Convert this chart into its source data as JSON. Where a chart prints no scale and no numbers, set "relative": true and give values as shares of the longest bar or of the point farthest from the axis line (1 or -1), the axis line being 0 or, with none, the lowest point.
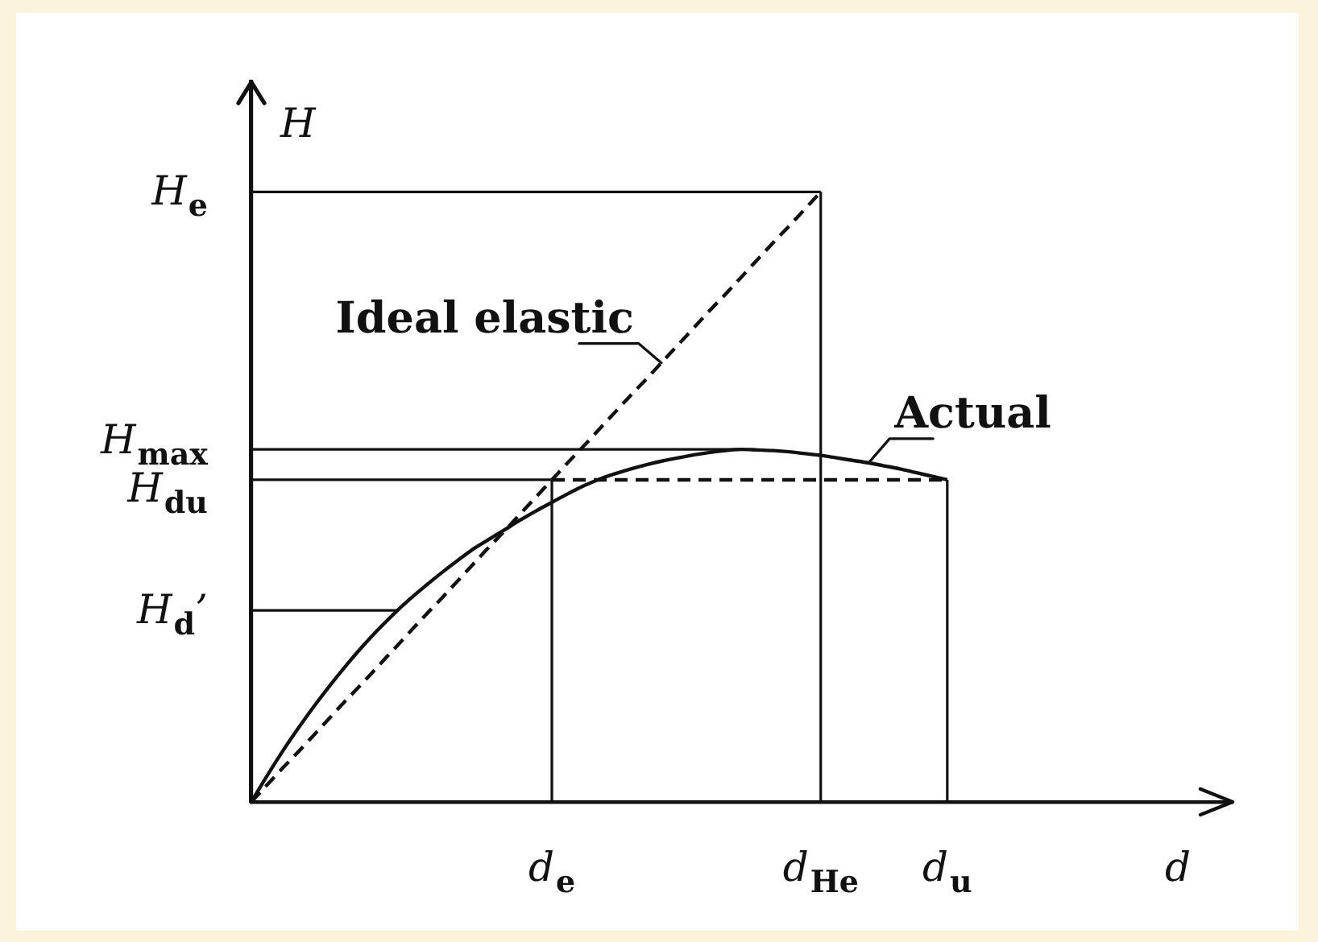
{
  "chart_data": {
    "type": "line",
    "relative": true,
    "xlabel": "d",
    "ylabel": "H",
    "categories": [
      null,
      null,
      null,
      null,
      null,
      null,
      null,
      null,
      null,
      null,
      null,
      null,
      null,
      null,
      null,
      null,
      null,
      null,
      null,
      "d$_{e}$",
      null,
      null,
      null,
      null,
      null,
      null,
      null,
      null,
      null,
      null,
      null,
      null,
      null,
      null,
      null,
      null,
      "d$_{He}$",
      null,
      null,
      null,
      null,
      null,
      null,
      null,
      "d$_{u}$"
    ],
    "series": [
      {
        "name": "Ideal elastic",
        "color": "#111111",
        "line_style": "dashed",
        "values": [
          0,
          0.028,
          0.056,
          0.083,
          0.111,
          0.139,
          0.167,
          0.194,
          0.222,
          0.25,
          0.278,
          0.306,
          0.333,
          0.361,
          0.389,
          0.417,
          0.444,
          0.472,
          0.5,
          0.528,
          0.556,
          0.583,
          0.611,
          0.639,
          0.667,
          0.694,
          0.722,
          0.75,
          0.778,
          0.806,
          0.833,
          0.861,
          0.889,
          0.917,
          0.944,
          0.972,
          1,
          null,
          null,
          null,
          null,
          null,
          null,
          null,
          null
        ]
      },
      {
        "name": "Actual",
        "color": "#111111",
        "values": [
          0,
          0.043,
          0.084,
          0.122,
          0.158,
          0.192,
          0.224,
          0.254,
          0.282,
          0.308,
          0.332,
          0.354,
          0.375,
          0.395,
          0.414,
          0.43,
          0.446,
          0.462,
          0.477,
          0.491,
          0.505,
          0.518,
          0.529,
          0.538,
          0.546,
          0.553,
          0.559,
          0.564,
          0.569,
          0.573,
          0.576,
          0.578,
          0.577,
          0.576,
          0.574,
          0.571,
          0.568,
          0.564,
          0.56,
          0.556,
          0.551,
          0.546,
          0.54,
          0.534,
          0.528
        ]
      },
      {
        "color": "#111111",
        "line_style": "dashed",
        "values": [
          null,
          null,
          null,
          null,
          null,
          null,
          null,
          null,
          null,
          null,
          null,
          null,
          null,
          null,
          null,
          null,
          null,
          null,
          null,
          0.528,
          0.528,
          0.528,
          0.528,
          0.528,
          0.528,
          0.528,
          0.528,
          0.528,
          0.528,
          0.528,
          0.528,
          0.528,
          0.528,
          0.528,
          0.528,
          0.528,
          0.528,
          0.528,
          0.528,
          0.528,
          0.528,
          0.528,
          0.528,
          0.528,
          0.528
        ]
      }
    ],
    "ref_lines": [
      {
        "axis": "y",
        "value": 1,
        "label": "H$_{e}$"
      },
      {
        "axis": "y",
        "value": 0.578,
        "label": "H$_{max}$"
      },
      {
        "axis": "y",
        "value": 0.528,
        "label": "H$_{du}$"
      },
      {
        "axis": "y",
        "value": 0.314,
        "label": "H$_{d}$’"
      },
      {
        "axis": "x",
        "value": "d$_{e}$"
      },
      {
        "axis": "x",
        "value": "d$_{He}$"
      },
      {
        "axis": "x",
        "value": "d$_{u}$"
      }
    ]
  }
}
